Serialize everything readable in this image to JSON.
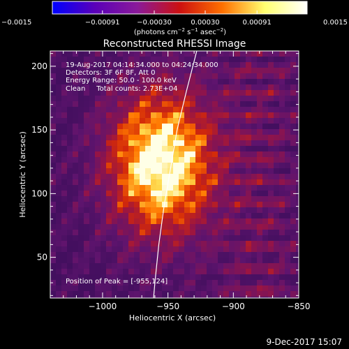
{
  "chart_data": {
    "type": "heatmap",
    "title": "Reconstructed RHESSI Image",
    "xlabel": "Heliocentric X (arcsec)",
    "ylabel": "Heliocentric Y (arcsec)",
    "xlim": [
      -1040,
      -850
    ],
    "ylim": [
      18,
      212
    ],
    "x_ticks": [
      -1000,
      -950,
      -900,
      -850
    ],
    "x_tick_labels": [
      "−1000",
      "−950",
      "−900",
      "−850"
    ],
    "y_ticks": [
      50,
      100,
      150,
      200
    ],
    "y_tick_labels": [
      "50",
      "100",
      "150",
      "200"
    ],
    "colorbar": {
      "min": -0.0015,
      "max": 0.0015,
      "ticks": [
        -0.0015,
        -0.00091,
        -0.0003,
        0.0003,
        0.00091,
        0.0015
      ],
      "tick_labels": [
        "−0.0015",
        "−0.00091",
        "−0.00030",
        "0.00030",
        "0.00091",
        "0.0015"
      ],
      "colors": [
        "#0000ff",
        "#5a00b8",
        "#8a1a9a",
        "#cc1010",
        "#ff7000",
        "#ffff70",
        "#ffffff"
      ]
    },
    "units_label": {
      "prefix": "(photons cm",
      "exp1": "−2",
      "mid1": " s",
      "exp2": "−1",
      "mid2": " asec",
      "exp3": "−2",
      "suffix": ")"
    },
    "info_lines": [
      "19-Aug-2017 04:14:34.000 to 04:24:34.000",
      "Detectors: 3F 6F 8F, Att 0",
      "Energy Range: 50.0 - 100.0 keV",
      "Clean     Total counts: 2.73E+04"
    ],
    "peak_text": "Position of Peak = [-955,124]",
    "peak": {
      "x": -955,
      "y": 124
    },
    "limb_points": [
      [
        -928,
        212
      ],
      [
        -936,
        180
      ],
      [
        -943,
        150
      ],
      [
        -948,
        120
      ],
      [
        -953,
        90
      ],
      [
        -957,
        60
      ],
      [
        -960,
        30
      ],
      [
        -961,
        18
      ]
    ]
  },
  "footer": {
    "date": "9-Dec-2017 15:07"
  }
}
